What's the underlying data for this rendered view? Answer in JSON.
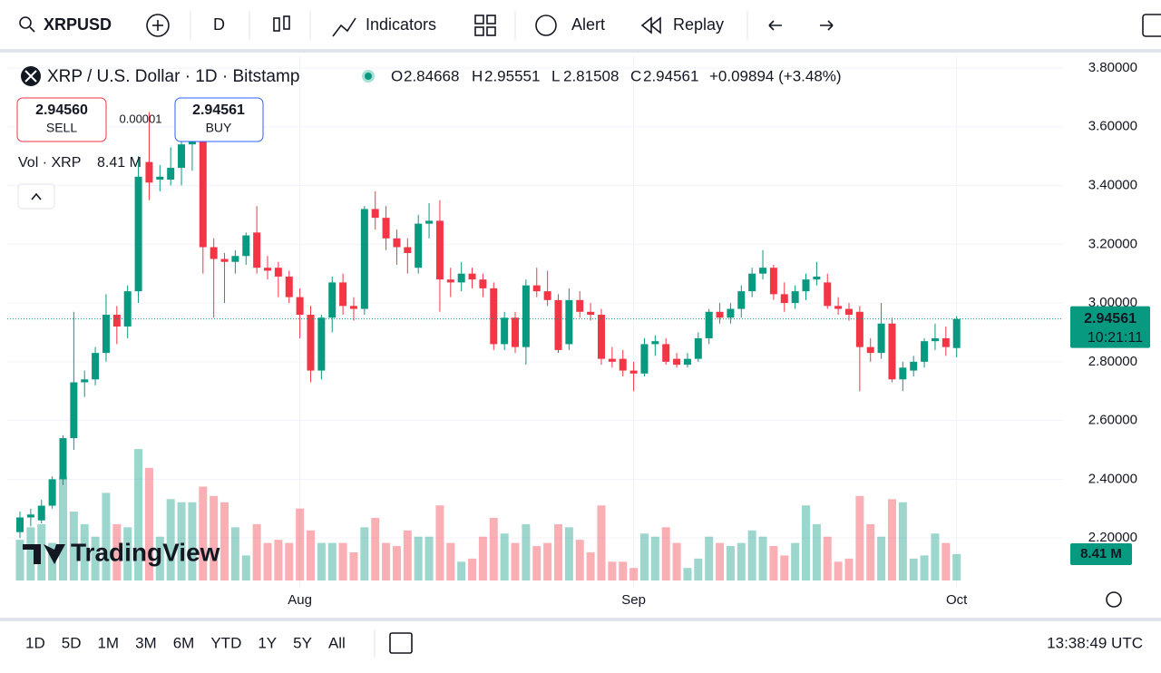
{
  "toolbar": {
    "symbol": "XRPUSD",
    "interval": "D",
    "indicators": "Indicators",
    "alert": "Alert",
    "replay": "Replay"
  },
  "trade": {
    "sell_price": "2.94560",
    "sell": "SELL",
    "spread": "0.00001",
    "buy_price": "2.94561",
    "buy": "BUY"
  },
  "footer": {
    "ranges": [
      "1D",
      "5D",
      "1M",
      "3M",
      "6M",
      "YTD",
      "1Y",
      "5Y",
      "All"
    ],
    "clock": "13:38:49 UTC"
  },
  "watermark": "TradingView",
  "chart_data": {
    "type": "candlestick",
    "title": "XRP / U.S. Dollar · 1D · Bitstamp",
    "ohlc_labels": [
      "O",
      "H",
      "L",
      "C"
    ],
    "change_label": "+0.09894 (+3.48%)",
    "volume_title": "Vol · XRP",
    "volume_last_label": "8.41 M",
    "countdown": "10:21:11",
    "up_color": "#089981",
    "down_color": "#f23645",
    "grid": true,
    "categories": [
      null,
      null,
      null,
      null,
      null,
      null,
      null,
      null,
      null,
      null,
      null,
      null,
      null,
      null,
      null,
      null,
      null,
      null,
      null,
      null,
      null,
      null,
      null,
      null,
      null,
      null,
      "Aug",
      null,
      null,
      null,
      null,
      null,
      null,
      null,
      null,
      null,
      null,
      null,
      null,
      null,
      null,
      null,
      null,
      null,
      null,
      null,
      null,
      null,
      null,
      null,
      null,
      null,
      null,
      null,
      null,
      null,
      null,
      "Sep",
      null,
      null,
      null,
      null,
      null,
      null,
      null,
      null,
      null,
      null,
      null,
      null,
      null,
      null,
      null,
      null,
      null,
      null,
      null,
      null,
      null,
      null,
      null,
      null,
      null,
      null,
      null,
      null,
      null,
      "Oct"
    ],
    "open": [
      2.22,
      2.27,
      2.26,
      2.31,
      2.4,
      2.54,
      2.73,
      2.74,
      2.83,
      2.96,
      2.92,
      3.04,
      3.48,
      3.42,
      3.42,
      3.46,
      3.54,
      3.56,
      3.19,
      3.15,
      3.14,
      3.16,
      3.24,
      3.12,
      3.12,
      3.09,
      3.02,
      2.96,
      2.77,
      2.95,
      3.07,
      2.99,
      2.98,
      3.32,
      3.29,
      3.22,
      3.19,
      3.12,
      3.27,
      3.28,
      3.08,
      3.07,
      3.1,
      3.08,
      3.05,
      2.86,
      2.95,
      2.85,
      3.06,
      3.04,
      3.01,
      2.86,
      3.01,
      2.97,
      2.96,
      2.81,
      2.81,
      2.77,
      2.76,
      2.86,
      2.86,
      2.81,
      2.79,
      2.81,
      2.88,
      2.97,
      2.95,
      2.98,
      3.04,
      3.1,
      3.12,
      3.03,
      3.0,
      3.04,
      3.08,
      3.07,
      2.99,
      2.98,
      2.97,
      2.85,
      2.83,
      2.93,
      2.74,
      2.77,
      2.8,
      2.87,
      2.88,
      2.84668
    ],
    "high": [
      2.29,
      2.3,
      2.33,
      2.41,
      2.55,
      2.97,
      2.77,
      2.85,
      3.03,
      2.99,
      3.06,
      3.5,
      3.65,
      3.47,
      3.53,
      3.6,
      3.66,
      3.6,
      3.22,
      3.17,
      3.18,
      3.24,
      3.33,
      3.16,
      3.14,
      3.11,
      3.05,
      2.99,
      2.96,
      3.09,
      3.1,
      3.02,
      3.33,
      3.38,
      3.33,
      3.25,
      3.22,
      3.3,
      3.34,
      3.35,
      3.12,
      3.14,
      3.12,
      3.1,
      3.07,
      2.97,
      2.97,
      3.08,
      3.12,
      3.11,
      3.03,
      3.05,
      3.04,
      3.0,
      2.98,
      2.85,
      2.84,
      2.8,
      2.88,
      2.89,
      2.88,
      2.83,
      2.83,
      2.9,
      2.98,
      3.0,
      3.0,
      3.06,
      3.12,
      3.18,
      3.13,
      3.07,
      3.06,
      3.1,
      3.14,
      3.1,
      3.02,
      3.0,
      2.99,
      2.88,
      3.0,
      2.95,
      2.8,
      2.82,
      2.88,
      2.93,
      2.92,
      2.95551
    ],
    "low": [
      2.2,
      2.24,
      2.25,
      2.3,
      2.38,
      2.5,
      2.68,
      2.72,
      2.8,
      2.86,
      2.88,
      3.0,
      3.35,
      3.38,
      3.4,
      3.4,
      3.45,
      3.1,
      2.95,
      3.0,
      3.1,
      3.13,
      3.1,
      3.08,
      3.02,
      3.0,
      2.88,
      2.73,
      2.74,
      2.9,
      2.96,
      2.94,
      2.96,
      3.25,
      3.18,
      3.13,
      3.1,
      3.1,
      3.22,
      2.97,
      3.02,
      3.04,
      3.05,
      3.02,
      2.84,
      2.84,
      2.83,
      2.79,
      3.02,
      2.99,
      2.83,
      2.84,
      2.95,
      2.94,
      2.79,
      2.78,
      2.75,
      2.7,
      2.75,
      2.82,
      2.79,
      2.78,
      2.78,
      2.8,
      2.86,
      2.93,
      2.93,
      2.95,
      3.02,
      3.08,
      3.01,
      2.97,
      2.98,
      3.01,
      3.06,
      2.98,
      2.96,
      2.94,
      2.7,
      2.8,
      2.81,
      2.73,
      2.7,
      2.75,
      2.78,
      2.84,
      2.82,
      2.81508
    ],
    "close": [
      2.27,
      2.28,
      2.31,
      2.4,
      2.54,
      2.73,
      2.74,
      2.83,
      2.96,
      2.92,
      3.04,
      3.43,
      3.41,
      3.43,
      3.46,
      3.54,
      3.58,
      3.19,
      3.15,
      3.14,
      3.16,
      3.23,
      3.12,
      3.11,
      3.09,
      3.02,
      2.96,
      2.77,
      2.95,
      3.07,
      2.99,
      2.98,
      3.32,
      3.29,
      3.22,
      3.19,
      3.17,
      3.27,
      3.28,
      3.08,
      3.07,
      3.1,
      3.08,
      3.05,
      2.86,
      2.95,
      2.85,
      3.06,
      3.04,
      3.01,
      2.84,
      3.01,
      2.97,
      2.96,
      2.81,
      2.8,
      2.77,
      2.76,
      2.86,
      2.87,
      2.8,
      2.79,
      2.81,
      2.88,
      2.97,
      2.95,
      2.98,
      3.04,
      3.1,
      3.12,
      3.03,
      3.0,
      3.04,
      3.08,
      3.09,
      2.99,
      2.98,
      2.96,
      2.85,
      2.83,
      2.93,
      2.74,
      2.78,
      2.8,
      2.87,
      2.88,
      2.85,
      2.94561
    ],
    "volume": [
      13,
      17,
      18,
      12,
      33,
      22,
      18,
      14,
      28,
      18,
      17,
      42,
      36,
      14,
      26,
      25,
      25,
      30,
      27,
      25,
      17,
      8,
      18,
      12,
      13,
      12,
      23,
      16,
      12,
      12,
      12,
      9,
      17,
      20,
      12,
      11,
      16,
      14,
      14,
      24,
      12,
      6,
      7,
      14,
      20,
      15,
      12,
      18,
      11,
      12,
      18,
      17,
      13,
      9,
      24,
      6,
      6,
      4,
      15,
      14,
      17,
      12,
      4,
      7,
      14,
      12,
      11,
      12,
      16,
      14,
      11,
      8,
      12,
      24,
      18,
      14,
      6,
      7,
      27,
      18,
      14,
      26,
      25,
      7,
      8,
      15,
      12,
      8.41
    ],
    "ylim": [
      2.04,
      3.84
    ],
    "yticks": [
      {
        "value": 2.2,
        "label": "2.20000"
      },
      {
        "value": 2.4,
        "label": "2.40000"
      },
      {
        "value": 2.6,
        "label": "2.60000"
      },
      {
        "value": 2.8,
        "label": "2.80000"
      },
      {
        "value": 3.0,
        "label": "3.00000"
      },
      {
        "value": 3.2,
        "label": "3.20000"
      },
      {
        "value": 3.4,
        "label": "3.40000"
      },
      {
        "value": 3.6,
        "label": "3.60000"
      },
      {
        "value": 3.8,
        "label": "3.80000"
      }
    ]
  }
}
